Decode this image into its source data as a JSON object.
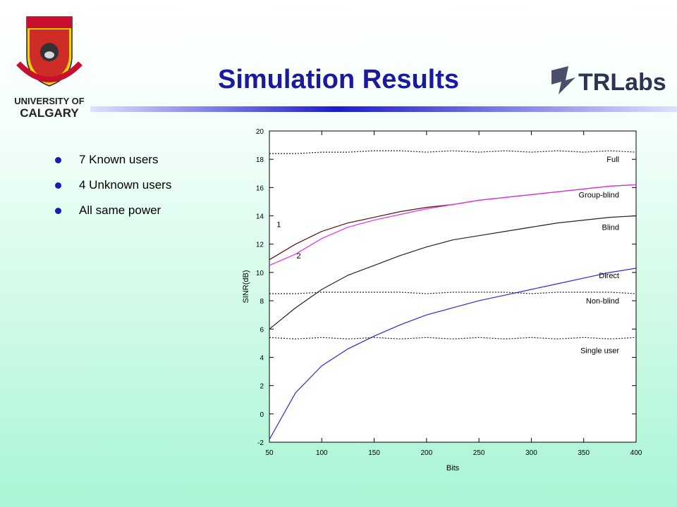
{
  "slide": {
    "title": "Simulation Results",
    "logo_left_text": [
      "UNIVERSITY OF",
      "CALGARY"
    ],
    "logo_right_text": "TRLabs"
  },
  "bullets": [
    {
      "text": "7 Known users"
    },
    {
      "text": "4 Unknown users"
    },
    {
      "text": "All same power"
    }
  ],
  "colors": {
    "title": "#1a1aa0",
    "bullet_dot": "#1a1ab4",
    "full": "#222222",
    "group_blind_1": "#5a1010",
    "group_blind_2": "#e830e8",
    "blind": "#222222",
    "direct": "#2a2ad8",
    "non_blind": "#222222",
    "single_user": "#222222"
  },
  "chart_data": {
    "type": "line",
    "title": "",
    "xlabel": "Bits",
    "ylabel": "SINR(dB)",
    "xlim": [
      50,
      400
    ],
    "ylim": [
      -2,
      20
    ],
    "xticks": [
      50,
      100,
      150,
      200,
      250,
      300,
      350,
      400
    ],
    "yticks": [
      -2,
      0,
      2,
      4,
      6,
      8,
      10,
      12,
      14,
      16,
      18,
      20
    ],
    "grid": false,
    "x": [
      50,
      75,
      100,
      125,
      150,
      175,
      200,
      225,
      250,
      275,
      300,
      325,
      350,
      375,
      400
    ],
    "series": [
      {
        "name": "Full",
        "style": "dotted",
        "values": [
          18.4,
          18.4,
          18.5,
          18.5,
          18.6,
          18.6,
          18.5,
          18.6,
          18.5,
          18.6,
          18.5,
          18.6,
          18.5,
          18.6,
          18.5
        ]
      },
      {
        "name": "Group-blind",
        "label": "1",
        "style": "solid",
        "values": [
          10.9,
          12.0,
          12.9,
          13.5,
          13.9,
          14.3,
          14.6,
          14.8,
          15.1,
          15.3,
          15.5,
          15.7,
          15.9,
          16.1,
          16.2
        ]
      },
      {
        "name": "Group-blind",
        "label": "2",
        "style": "solid",
        "values": [
          10.5,
          11.3,
          12.4,
          13.2,
          13.7,
          14.1,
          14.5,
          14.8,
          15.1,
          15.3,
          15.5,
          15.7,
          15.9,
          16.1,
          16.2
        ]
      },
      {
        "name": "Blind",
        "style": "solid",
        "values": [
          6.0,
          7.5,
          8.8,
          9.8,
          10.5,
          11.2,
          11.8,
          12.3,
          12.6,
          12.9,
          13.2,
          13.5,
          13.7,
          13.9,
          14.0
        ]
      },
      {
        "name": "Direct",
        "style": "solid",
        "values": [
          -1.8,
          1.5,
          3.4,
          4.6,
          5.5,
          6.3,
          7.0,
          7.5,
          8.0,
          8.4,
          8.8,
          9.2,
          9.6,
          10.0,
          10.3
        ]
      },
      {
        "name": "Non-blind",
        "style": "dotted",
        "values": [
          8.5,
          8.5,
          8.6,
          8.6,
          8.6,
          8.6,
          8.5,
          8.6,
          8.6,
          8.6,
          8.5,
          8.6,
          8.6,
          8.6,
          8.5
        ]
      },
      {
        "name": "Single user",
        "style": "dotted",
        "values": [
          5.4,
          5.3,
          5.4,
          5.3,
          5.4,
          5.3,
          5.4,
          5.3,
          5.4,
          5.3,
          5.4,
          5.3,
          5.4,
          5.3,
          5.4
        ]
      }
    ]
  }
}
